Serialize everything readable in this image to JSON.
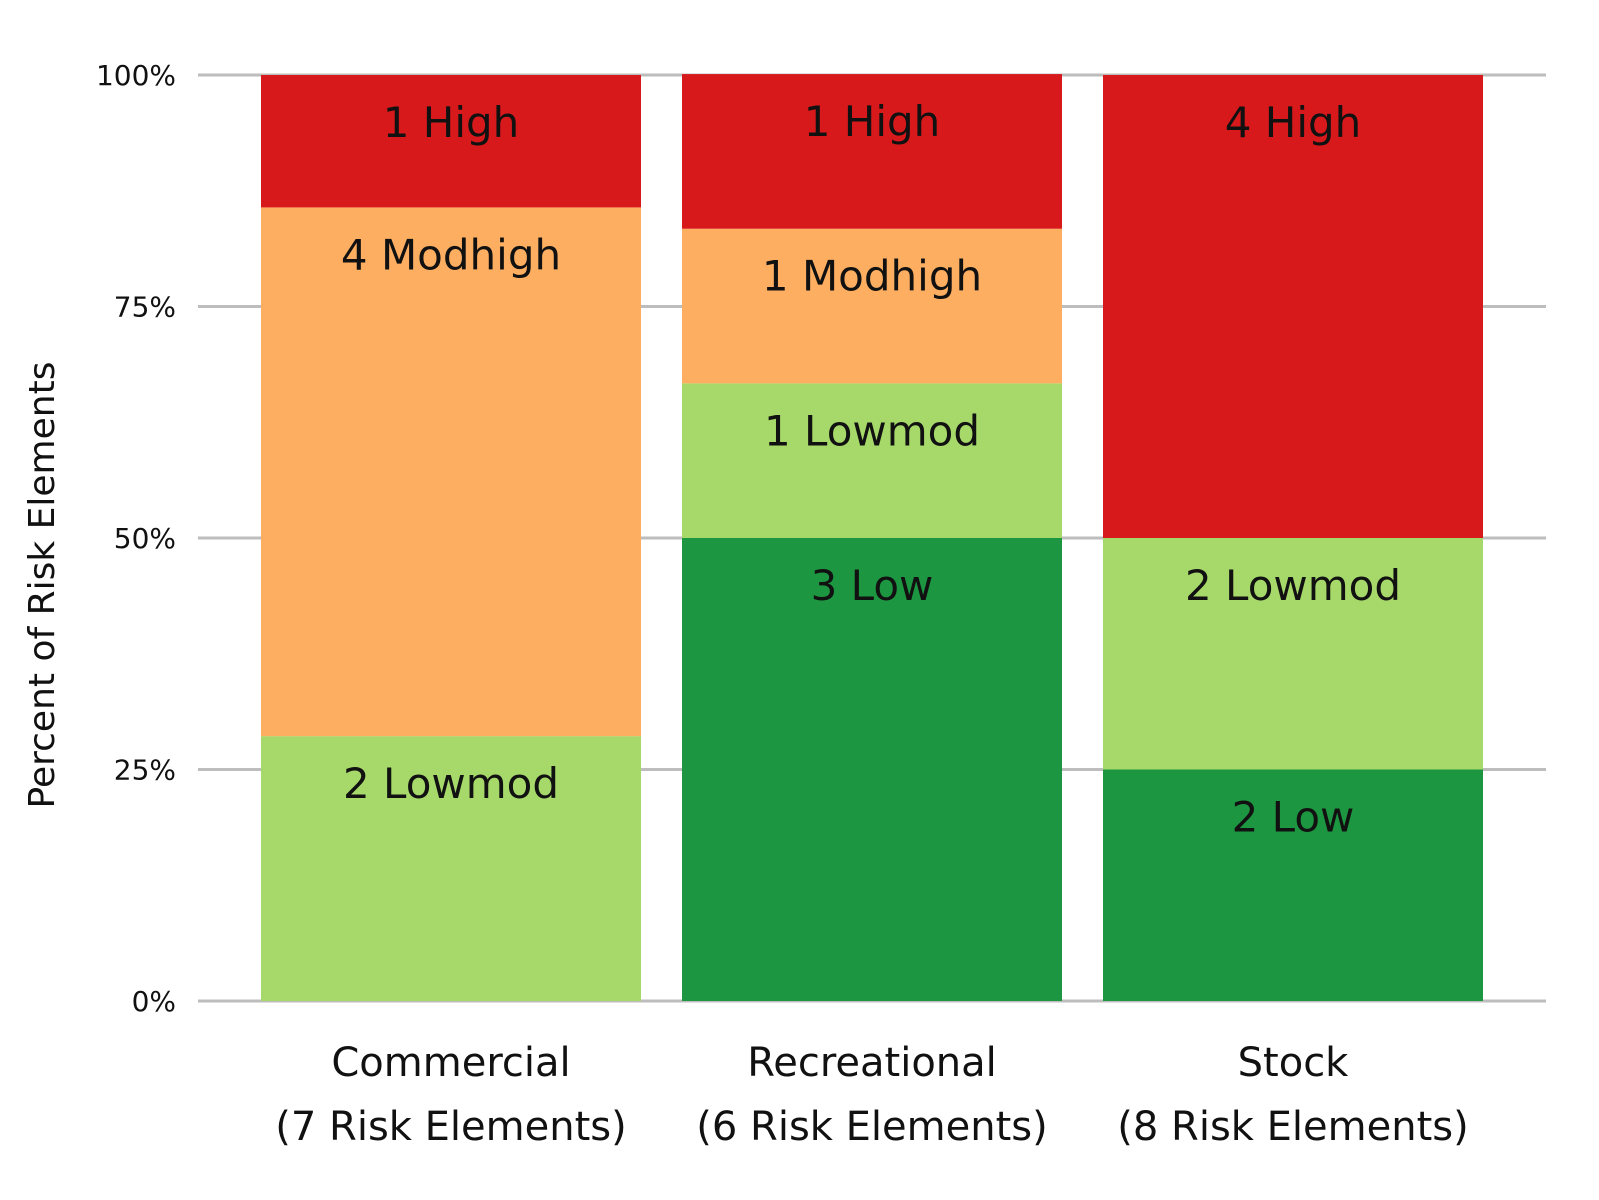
{
  "chart_data": {
    "type": "bar",
    "stacked": true,
    "title": "",
    "xlabel": "",
    "ylabel": "Percent of Risk Elements",
    "ylim": [
      0,
      100
    ],
    "y_ticks": [
      "0%",
      "25%",
      "50%",
      "75%",
      "100%"
    ],
    "grid": "horizontal",
    "legend": "none",
    "colors": {
      "Low": "#1d9641",
      "Lowmod": "#a6d96a",
      "Modhigh": "#fdae61",
      "High": "#d7191c"
    },
    "categories": [
      {
        "name": "Commercial",
        "sub": "(7 Risk Elements)"
      },
      {
        "name": "Recreational",
        "sub": "(6 Risk Elements)"
      },
      {
        "name": "Stock",
        "sub": "(8 Risk Elements)"
      }
    ],
    "series": [
      {
        "name": "Low",
        "counts": [
          0,
          3,
          2
        ],
        "percent": [
          0,
          50,
          25
        ],
        "labels": [
          "",
          "3 Low",
          "2 Low"
        ]
      },
      {
        "name": "Lowmod",
        "counts": [
          2,
          1,
          2
        ],
        "percent": [
          28.6,
          16.7,
          25
        ],
        "labels": [
          "2 Lowmod",
          "1 Lowmod",
          "2 Lowmod"
        ]
      },
      {
        "name": "Modhigh",
        "counts": [
          4,
          1,
          0
        ],
        "percent": [
          57.1,
          16.7,
          0
        ],
        "labels": [
          "4 Modhigh",
          "1 Modhigh",
          ""
        ]
      },
      {
        "name": "High",
        "counts": [
          1,
          1,
          4
        ],
        "percent": [
          14.3,
          16.7,
          50
        ],
        "labels": [
          "1 High",
          "1 High",
          "4 High"
        ]
      }
    ]
  }
}
